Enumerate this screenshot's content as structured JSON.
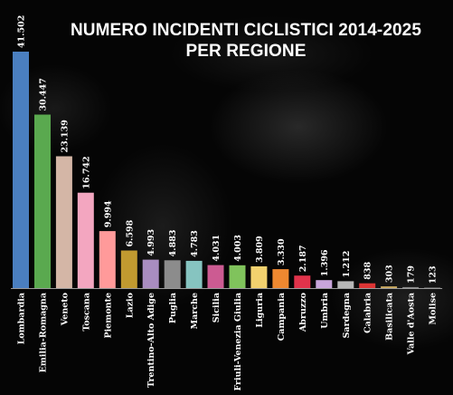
{
  "chart_data": {
    "type": "bar",
    "title": "NUMERO INCIDENTI CICLISTICI 2014-2025 PER REGIONE",
    "title_lines": [
      "NUMERO INCIDENTI CICLISTICI 2014-2025",
      "PER REGIONE"
    ],
    "categories": [
      "Lombardia",
      "Emilia-Romagna",
      "Veneto",
      "Toscana",
      "Piemonte",
      "Lazio",
      "Trentino-Alto Adige",
      "Puglia",
      "Marche",
      "Sicilia",
      "Friuli-Venezia Giulia",
      "Liguria",
      "Campania",
      "Abruzzo",
      "Umbria",
      "Sardegna",
      "Calabria",
      "Basilicata",
      "Valle d'Aosta",
      "Molise"
    ],
    "values": [
      41502,
      30447,
      23139,
      16742,
      9994,
      6598,
      4993,
      4883,
      4783,
      4031,
      4003,
      3809,
      3330,
      2187,
      1396,
      1212,
      838,
      303,
      179,
      123
    ],
    "value_labels": [
      "41.502",
      "30.447",
      "23.139",
      "16.742",
      "9.994",
      "6.598",
      "4.993",
      "4.883",
      "4.783",
      "4.031",
      "4.003",
      "3.809",
      "3.330",
      "2.187",
      "1.396",
      "1.212",
      "838",
      "303",
      "179",
      "123"
    ],
    "colors": [
      "#4a7fc0",
      "#5aa94f",
      "#d4b6a6",
      "#f3a6c0",
      "#ff9a9a",
      "#c19a30",
      "#a98dc0",
      "#8c8c8c",
      "#86c4c0",
      "#cc5b92",
      "#80c35c",
      "#f2d16e",
      "#ee8830",
      "#e0334b",
      "#c9a6dc",
      "#b8b8b8",
      "#dd3535",
      "#c8a860",
      "#8a8a8a",
      "#5a5a5a"
    ],
    "xlabel": "",
    "ylabel": "",
    "ylim": [
      0,
      41502
    ],
    "grid": false,
    "legend": "none"
  }
}
